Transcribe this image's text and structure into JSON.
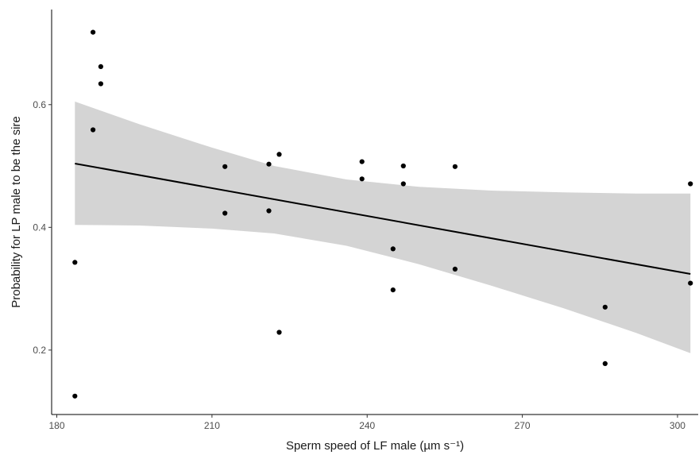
{
  "chart_data": {
    "type": "scatter",
    "title": "",
    "xlabel": "Sperm speed of LF male (µm s⁻¹)",
    "ylabel": "Probability for LP male to be the sire",
    "xlim": [
      179,
      304
    ],
    "ylim": [
      0.095,
      0.755
    ],
    "x_ticks": [
      180,
      210,
      240,
      270,
      300
    ],
    "y_ticks": [
      0.2,
      0.4,
      0.6
    ],
    "x_tick_labels": [
      "180",
      "210",
      "240",
      "270",
      "300"
    ],
    "y_tick_labels": [
      "0.2",
      "0.4",
      "0.6"
    ],
    "grid": false,
    "colors": {
      "points": "#000000",
      "line": "#000000",
      "ribbon": "#d4d4d4",
      "axis": "#000000"
    },
    "points": [
      {
        "x": 183.5,
        "y": 0.125
      },
      {
        "x": 183.5,
        "y": 0.343
      },
      {
        "x": 187.0,
        "y": 0.718
      },
      {
        "x": 187.0,
        "y": 0.559
      },
      {
        "x": 188.5,
        "y": 0.662
      },
      {
        "x": 188.5,
        "y": 0.634
      },
      {
        "x": 212.5,
        "y": 0.499
      },
      {
        "x": 212.5,
        "y": 0.423
      },
      {
        "x": 221.0,
        "y": 0.503
      },
      {
        "x": 221.0,
        "y": 0.427
      },
      {
        "x": 223.0,
        "y": 0.519
      },
      {
        "x": 223.0,
        "y": 0.229
      },
      {
        "x": 239.0,
        "y": 0.507
      },
      {
        "x": 239.0,
        "y": 0.479
      },
      {
        "x": 245.0,
        "y": 0.365
      },
      {
        "x": 245.0,
        "y": 0.298
      },
      {
        "x": 247.0,
        "y": 0.5
      },
      {
        "x": 247.0,
        "y": 0.471
      },
      {
        "x": 257.0,
        "y": 0.499
      },
      {
        "x": 257.0,
        "y": 0.332
      },
      {
        "x": 286.0,
        "y": 0.27
      },
      {
        "x": 286.0,
        "y": 0.178
      },
      {
        "x": 302.5,
        "y": 0.471
      },
      {
        "x": 302.5,
        "y": 0.309
      }
    ],
    "fit": {
      "x": [
        183.5,
        302.5
      ],
      "y": [
        0.504,
        0.324
      ]
    },
    "ribbon": {
      "x": [
        183.5,
        196,
        210,
        222,
        236,
        250,
        264,
        278,
        292,
        302.5
      ],
      "upper": [
        0.605,
        0.568,
        0.53,
        0.5,
        0.478,
        0.466,
        0.46,
        0.457,
        0.455,
        0.455
      ],
      "lower": [
        0.404,
        0.403,
        0.398,
        0.39,
        0.37,
        0.34,
        0.305,
        0.268,
        0.228,
        0.195
      ]
    }
  }
}
